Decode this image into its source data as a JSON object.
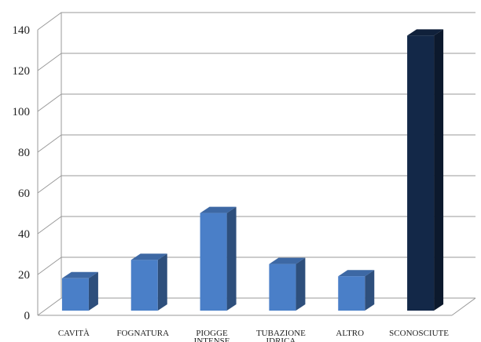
{
  "chart_data": {
    "type": "bar",
    "title": "",
    "xlabel": "",
    "ylabel": "",
    "categories": [
      [
        "CAVITÀ"
      ],
      [
        "FOGNATURA"
      ],
      [
        "PIOGGE",
        "INTENSE"
      ],
      [
        "TUBAZIONE",
        "IDRICA"
      ],
      [
        "ALTRO"
      ],
      [
        "SCONOSCIUTE"
      ]
    ],
    "values": [
      17,
      26,
      49,
      24,
      18,
      136
    ],
    "ylim": [
      0,
      140
    ],
    "yticks": [
      0,
      20,
      40,
      60,
      80,
      100,
      120,
      140
    ],
    "grid": true,
    "legend": "none",
    "three_d": true,
    "bar_colors": [
      "#4a7fc8",
      "#4a7fc8",
      "#4a7fc8",
      "#4a7fc8",
      "#4a7fc8",
      "#132848"
    ],
    "grid_color": "#9a9a9a"
  }
}
